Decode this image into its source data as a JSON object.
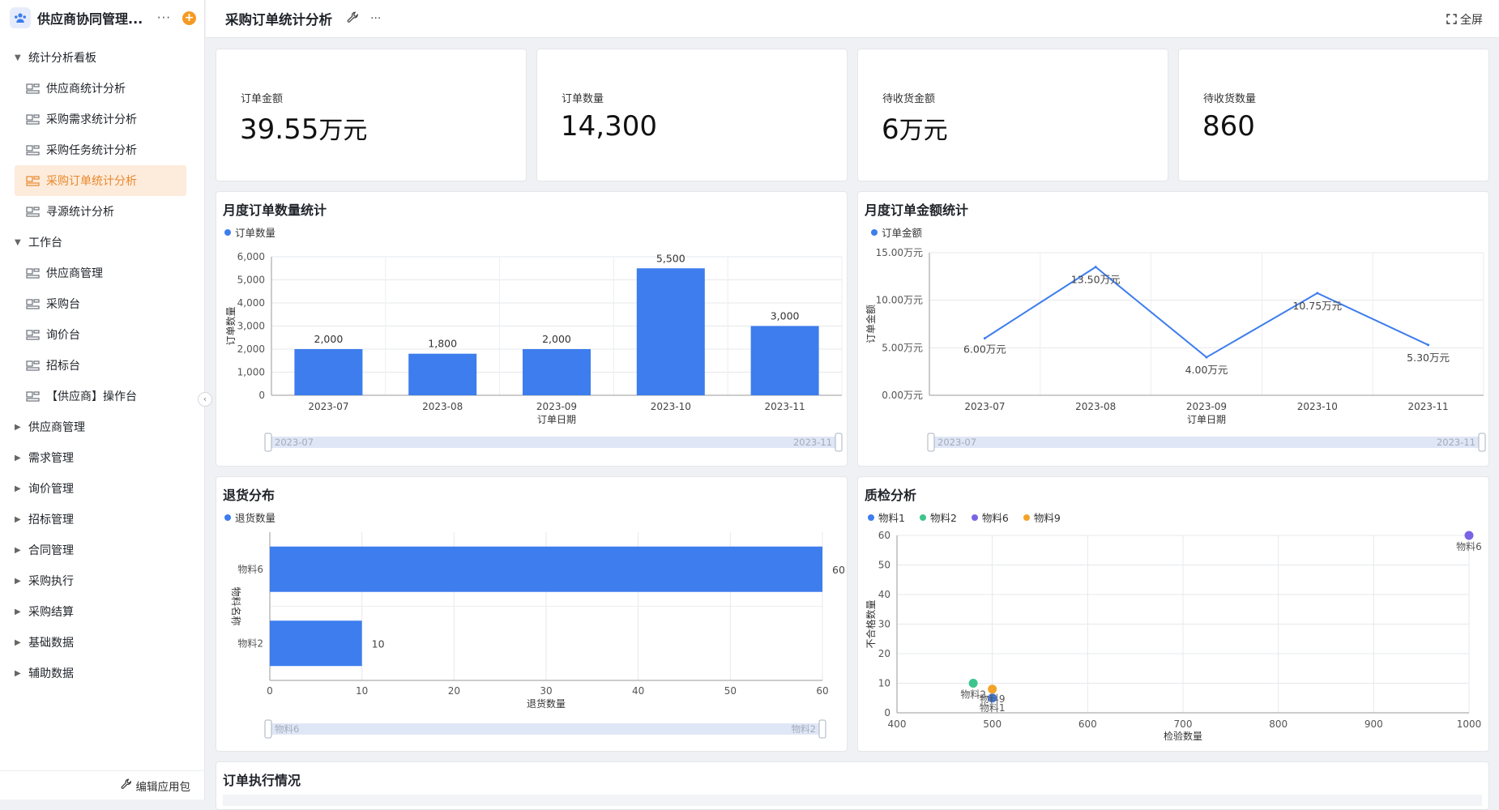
{
  "app": {
    "name": "供应商协同管理...",
    "more": "···",
    "add": "+"
  },
  "nav": [
    {
      "type": "group",
      "label": "统计分析看板",
      "expanded": true
    },
    {
      "type": "leaf",
      "label": "供应商统计分析"
    },
    {
      "type": "leaf",
      "label": "采购需求统计分析"
    },
    {
      "type": "leaf",
      "label": "采购任务统计分析"
    },
    {
      "type": "leaf",
      "label": "采购订单统计分析",
      "active": true
    },
    {
      "type": "leaf",
      "label": "寻源统计分析"
    },
    {
      "type": "group",
      "label": "工作台",
      "expanded": true
    },
    {
      "type": "leaf",
      "label": "供应商管理"
    },
    {
      "type": "leaf",
      "label": "采购台"
    },
    {
      "type": "leaf",
      "label": "询价台"
    },
    {
      "type": "leaf",
      "label": "招标台"
    },
    {
      "type": "leaf",
      "label": "【供应商】操作台"
    },
    {
      "type": "group",
      "label": "供应商管理",
      "expanded": false
    },
    {
      "type": "group",
      "label": "需求管理",
      "expanded": false
    },
    {
      "type": "group",
      "label": "询价管理",
      "expanded": false
    },
    {
      "type": "group",
      "label": "招标管理",
      "expanded": false
    },
    {
      "type": "group",
      "label": "合同管理",
      "expanded": false
    },
    {
      "type": "group",
      "label": "采购执行",
      "expanded": false
    },
    {
      "type": "group",
      "label": "采购结算",
      "expanded": false
    },
    {
      "type": "group",
      "label": "基础数据",
      "expanded": false
    },
    {
      "type": "group",
      "label": "辅助数据",
      "expanded": false
    }
  ],
  "sidebar_footer": "编辑应用包",
  "header": {
    "title": "采购订单统计分析",
    "more": "···",
    "fullscreen": "全屏"
  },
  "kpis": [
    {
      "label": "订单金额",
      "value": "39.55",
      "unit": "万元"
    },
    {
      "label": "订单数量",
      "value": "14,300",
      "unit": ""
    },
    {
      "label": "待收货金额",
      "value": "6",
      "unit": "万元"
    },
    {
      "label": "待收货数量",
      "value": "860",
      "unit": ""
    }
  ],
  "colors": {
    "primary": "#3d7ded",
    "accent": "#e8892a",
    "green": "#3ec58c",
    "purple": "#7b63e6",
    "orange": "#f2a428"
  },
  "chart_data": [
    {
      "type": "bar",
      "title": "月度订单数量统计",
      "legend": [
        "订单数量"
      ],
      "xlabel": "订单日期",
      "ylabel": "订单数量",
      "categories": [
        "2023-07",
        "2023-08",
        "2023-09",
        "2023-10",
        "2023-11"
      ],
      "values": [
        2000,
        1800,
        2000,
        5500,
        3000
      ],
      "value_labels": [
        "2,000",
        "1,800",
        "2,000",
        "5,500",
        "3,000"
      ],
      "ylim": [
        0,
        6000
      ],
      "yticks": [
        "0",
        "1,000",
        "2,000",
        "3,000",
        "4,000",
        "5,000",
        "6,000"
      ],
      "slider": [
        "2023-07",
        "2023-11"
      ]
    },
    {
      "type": "line",
      "title": "月度订单金额统计",
      "legend": [
        "订单金额"
      ],
      "xlabel": "订单日期",
      "ylabel": "订单金额",
      "categories": [
        "2023-07",
        "2023-08",
        "2023-09",
        "2023-10",
        "2023-11"
      ],
      "values": [
        6.0,
        13.5,
        4.0,
        10.75,
        5.3
      ],
      "value_labels": [
        "6.00万元",
        "13.50万元",
        "4.00万元",
        "10.75万元",
        "5.30万元"
      ],
      "ylim": [
        0,
        15
      ],
      "yticks": [
        "0.00万元",
        "5.00万元",
        "10.00万元",
        "15.00万元"
      ],
      "slider": [
        "2023-07",
        "2023-11"
      ]
    },
    {
      "type": "bar",
      "orientation": "horizontal",
      "title": "退货分布",
      "legend": [
        "退货数量"
      ],
      "xlabel": "退货数量",
      "ylabel": "物料名称",
      "categories": [
        "物料6",
        "物料2"
      ],
      "values": [
        60,
        10
      ],
      "xlim": [
        0,
        60
      ],
      "xticks": [
        "0",
        "10",
        "20",
        "30",
        "40",
        "50",
        "60"
      ],
      "slider": [
        "物料6",
        "物料2"
      ]
    },
    {
      "type": "scatter",
      "title": "质检分析",
      "xlabel": "检验数量",
      "ylabel": "不合格数量",
      "xlim": [
        400,
        1000
      ],
      "ylim": [
        0,
        60
      ],
      "xticks": [
        "400",
        "500",
        "600",
        "700",
        "800",
        "900",
        "1000"
      ],
      "yticks": [
        "0",
        "10",
        "20",
        "30",
        "40",
        "50",
        "60"
      ],
      "series": [
        {
          "name": "物料1",
          "x": 500,
          "y": 5
        },
        {
          "name": "物料2",
          "x": 480,
          "y": 10
        },
        {
          "name": "物料6",
          "x": 1000,
          "y": 60
        },
        {
          "name": "物料9",
          "x": 500,
          "y": 8
        }
      ]
    }
  ],
  "bottom_card": {
    "title": "订单执行情况"
  }
}
